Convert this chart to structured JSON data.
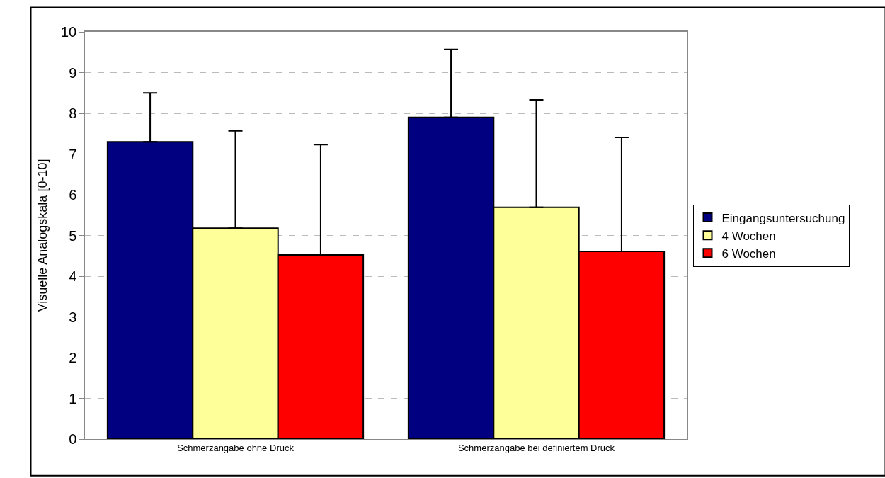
{
  "chart_data": {
    "type": "bar",
    "ylabel": "Visuelle Analogskala [0-10]",
    "categories": [
      "Schmerzangabe ohne Druck",
      "Schmerzangabe bei definiertem Druck"
    ],
    "series": [
      {
        "name": "Eingangsuntersuchung",
        "color": "#000080",
        "values": [
          7.3,
          7.9
        ],
        "errors": [
          [
            7.3,
            8.5
          ],
          [
            7.9,
            9.57
          ]
        ]
      },
      {
        "name": "4 Wochen",
        "color": "#ffff99",
        "values": [
          5.18,
          5.69
        ],
        "errors": [
          [
            5.18,
            7.57
          ],
          [
            5.69,
            8.33
          ]
        ]
      },
      {
        "name": "6 Wochen",
        "color": "#ff0000",
        "values": [
          4.52,
          4.61
        ],
        "errors": [
          [
            4.52,
            7.23
          ],
          [
            4.61,
            7.41
          ]
        ]
      }
    ],
    "ylim": [
      0,
      10
    ],
    "yticks": [
      0,
      1,
      2,
      3,
      4,
      5,
      6,
      7,
      8,
      9,
      10
    ],
    "grid": "y",
    "legend": "right"
  }
}
